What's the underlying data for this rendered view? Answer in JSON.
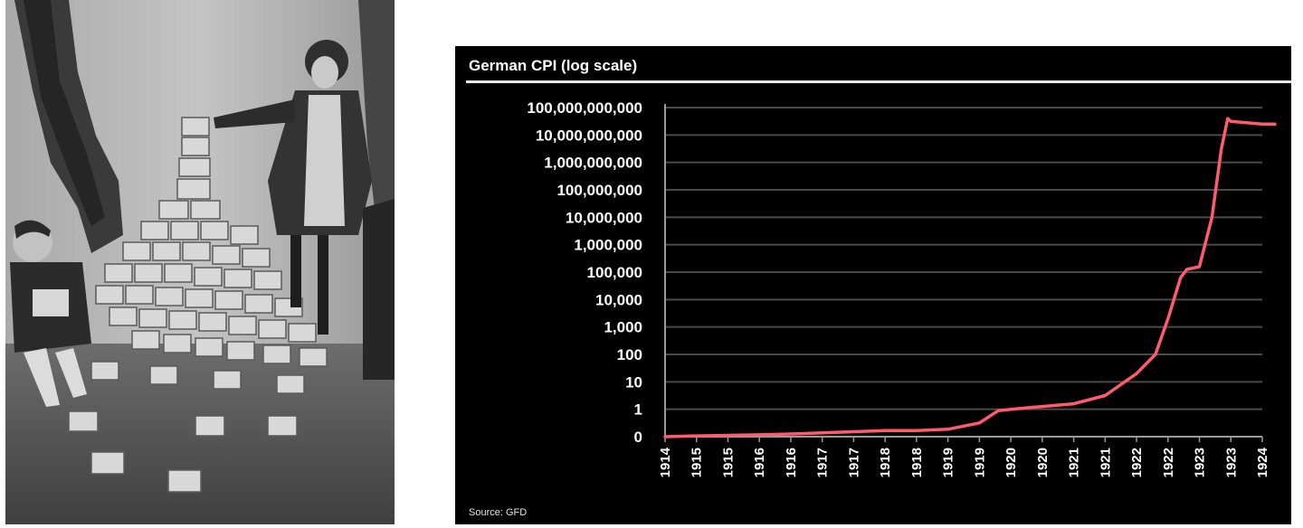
{
  "photo": {
    "subject": "black-and-white-photo-children-stacking-banknotes"
  },
  "chart_data": {
    "type": "line",
    "title": "German CPI (log scale)",
    "source": "Source: GFD",
    "y_scale": "log",
    "y_ticks": [
      "100,000,000,000",
      "10,000,000,000",
      "1,000,000,000",
      "100,000,000",
      "10,000,000",
      "1,000,000",
      "100,000",
      "10,000",
      "1,000",
      "100",
      "10",
      "1",
      "0"
    ],
    "x_ticks": [
      "1914",
      "1915",
      "1915",
      "1916",
      "1916",
      "1917",
      "1917",
      "1918",
      "1918",
      "1919",
      "1919",
      "1920",
      "1920",
      "1921",
      "1921",
      "1922",
      "1922",
      "1923",
      "1923",
      "1924"
    ],
    "grid": true,
    "line_color": "#ff5a6e",
    "series": [
      {
        "points": [
          [
            0,
            0.0
          ],
          [
            1,
            0.03
          ],
          [
            2,
            0.05
          ],
          [
            3,
            0.07
          ],
          [
            4,
            0.1
          ],
          [
            5,
            0.14
          ],
          [
            6,
            0.18
          ],
          [
            7,
            0.22
          ],
          [
            8,
            0.22
          ],
          [
            9,
            0.27
          ],
          [
            10,
            0.5
          ],
          [
            10.6,
            0.95
          ],
          [
            11,
            1.0
          ],
          [
            12,
            1.1
          ],
          [
            13,
            1.2
          ],
          [
            14,
            1.5
          ],
          [
            15,
            2.3
          ],
          [
            15.6,
            3.0
          ],
          [
            16,
            4.3
          ],
          [
            16.4,
            5.8
          ],
          [
            16.6,
            6.1
          ],
          [
            17,
            6.2
          ],
          [
            17.4,
            8.0
          ],
          [
            17.7,
            10.5
          ],
          [
            17.9,
            11.6
          ],
          [
            18,
            11.5
          ],
          [
            19,
            11.4
          ],
          [
            19.4,
            11.4
          ]
        ]
      }
    ]
  }
}
